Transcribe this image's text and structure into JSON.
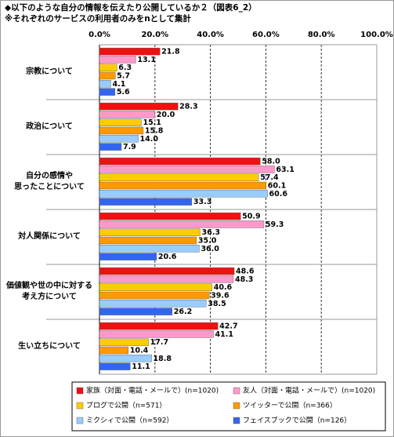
{
  "chart_data": {
    "type": "bar",
    "orientation": "horizontal",
    "title": "◆以下のような自分の情報を伝えたり公開しているか２（図表6_2）",
    "subtitle": "※それぞれのサービスの利用者のみをnとして集計",
    "categories": [
      "宗教について",
      "政治について",
      "自分の感情や\n思ったことについて",
      "対人関係について",
      "価値観や世の中に対する\n考え方について",
      "生い立ちについて"
    ],
    "series": [
      {
        "name": "家族（対面・電話・メールで）(n=1020)",
        "color": "#ee1111",
        "values": [
          21.8,
          28.3,
          58.0,
          50.9,
          48.6,
          42.7
        ],
        "value_labels": [
          "21.8",
          "28.3",
          "58.0",
          "50.9",
          "48.6",
          "42.7"
        ]
      },
      {
        "name": "友人（対面・電話・メールで）(n=1020)",
        "color": "#ff99cc",
        "values": [
          13.1,
          20.0,
          63.1,
          59.3,
          48.3,
          41.1
        ],
        "value_labels": [
          "13.1",
          "20.0",
          "63.1",
          "59.3",
          "48.3",
          "41.1"
        ]
      },
      {
        "name": "ブログで公開（n=571）",
        "color": "#ffcc00",
        "values": [
          6.3,
          15.1,
          57.4,
          36.3,
          40.6,
          17.7
        ],
        "value_labels": [
          "6.3",
          "15.1",
          "57.4",
          "36.3",
          "40.6",
          "17.7"
        ]
      },
      {
        "name": "ツイッターで公開（n=366）",
        "color": "#ff9900",
        "values": [
          5.7,
          15.8,
          60.1,
          35.0,
          39.6,
          10.4
        ],
        "value_labels": [
          "5.7",
          "15.8",
          "60.1",
          "35.0",
          "39.6",
          "10.4"
        ]
      },
      {
        "name": "ミクシィで公開（n=592）",
        "color": "#99ccff",
        "values": [
          4.1,
          14.0,
          60.6,
          36.0,
          38.5,
          18.8
        ],
        "value_labels": [
          "4.1",
          "14.0",
          "60.6",
          "36.0",
          "38.5",
          "18.8"
        ]
      },
      {
        "name": "フェイスブックで公開（n=126）",
        "color": "#3366ee",
        "values": [
          5.6,
          7.9,
          33.3,
          20.6,
          26.2,
          11.1
        ],
        "value_labels": [
          "5.6",
          "7.9",
          "33.3",
          "20.6",
          "26.2",
          "11.1"
        ]
      }
    ],
    "xlim": [
      0,
      100
    ],
    "xticks": [
      {
        "value": 0,
        "label": "0.0%"
      },
      {
        "value": 20,
        "label": "20.0%"
      },
      {
        "value": 40,
        "label": "40.0%"
      },
      {
        "value": 60,
        "label": "60.0%"
      },
      {
        "value": 80,
        "label": "80.0%"
      },
      {
        "value": 100,
        "label": "100.0%"
      }
    ],
    "grid": true
  }
}
